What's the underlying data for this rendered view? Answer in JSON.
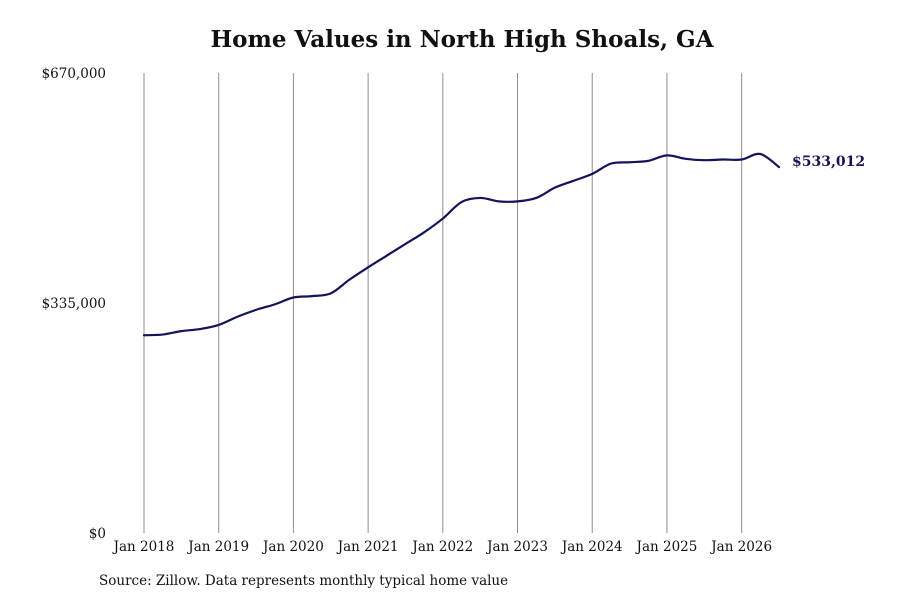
{
  "chart_data": {
    "type": "line",
    "title": "Home Values in North High Shoals, GA",
    "xlabel": "",
    "ylabel": "",
    "ylim": [
      0,
      670000
    ],
    "y_ticks": [
      "$0",
      "$335,000",
      "$670,000"
    ],
    "y_tick_values": [
      0,
      335000,
      670000
    ],
    "x_ticks": [
      "Jan 2018",
      "Jan 2019",
      "Jan 2020",
      "Jan 2021",
      "Jan 2022",
      "Jan 2023",
      "Jan 2024",
      "Jan 2025",
      "Jan 2026"
    ],
    "x_tick_values": [
      2018.0,
      2019.0,
      2020.0,
      2021.0,
      2022.0,
      2023.0,
      2024.0,
      2025.0,
      2026.0
    ],
    "xlim": [
      2018.0,
      2026.5
    ],
    "grid": "vertical",
    "end_label": "$533,012",
    "series": [
      {
        "x": [
          2018.0,
          2018.25,
          2018.5,
          2018.75,
          2019.0,
          2019.25,
          2019.5,
          2019.75,
          2020.0,
          2020.25,
          2020.5,
          2020.75,
          2021.0,
          2021.25,
          2021.5,
          2021.75,
          2022.0,
          2022.25,
          2022.5,
          2022.75,
          2023.0,
          2023.25,
          2023.5,
          2023.75,
          2024.0,
          2024.25,
          2024.5,
          2024.75,
          2025.0,
          2025.25,
          2025.5,
          2025.75,
          2026.0,
          2026.25,
          2026.5
        ],
        "values": [
          288000,
          289000,
          294000,
          297000,
          303000,
          315000,
          325000,
          333000,
          343000,
          345000,
          349000,
          369000,
          387000,
          404000,
          421000,
          438000,
          458000,
          482000,
          488000,
          483000,
          483000,
          488000,
          503000,
          513000,
          523000,
          538000,
          540000,
          542000,
          550000,
          545000,
          543000,
          544000,
          544000,
          552000,
          533012
        ]
      }
    ],
    "colors": {
      "line": "#13135e",
      "grid": "#8f8f8f",
      "text": "#111111",
      "end_label": "#13135e"
    },
    "source_note": "Source: Zillow. Data represents monthly typical home value"
  }
}
